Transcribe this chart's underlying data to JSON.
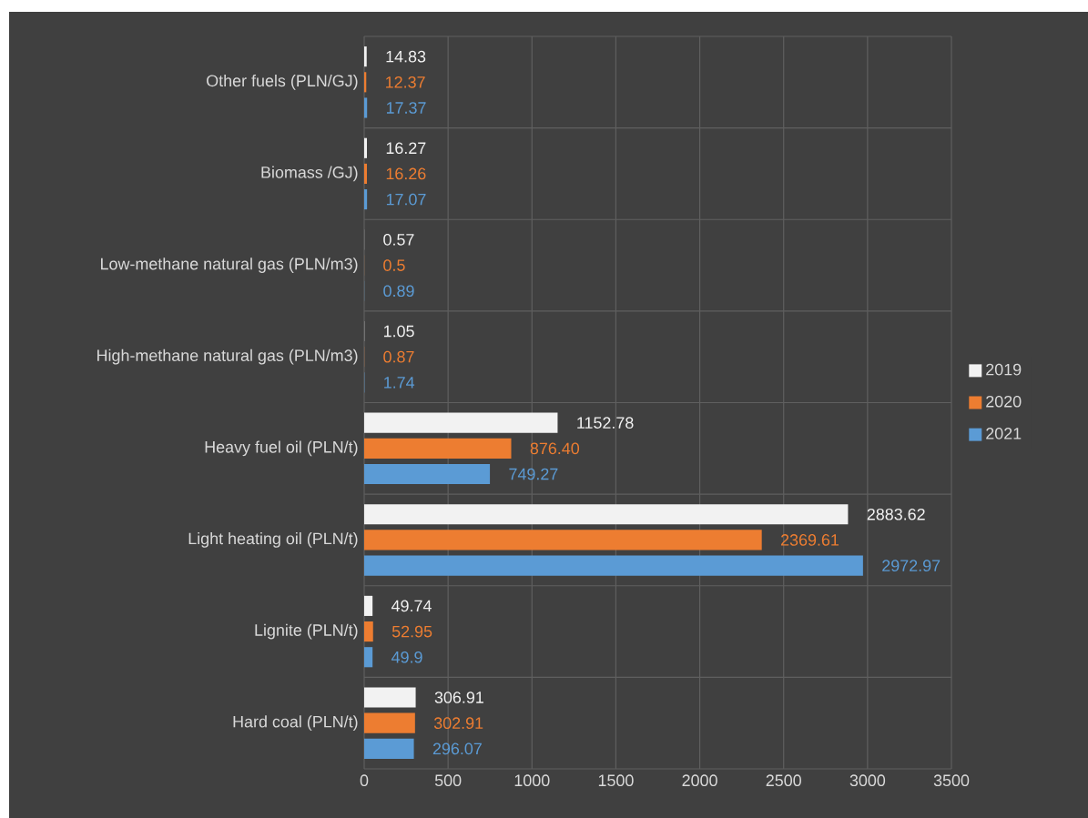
{
  "chart_data": {
    "type": "bar",
    "orientation": "horizontal",
    "categories": [
      "Other fuels (PLN/GJ)",
      "Biomass /GJ)",
      "Low-methane natural gas (PLN/m3)",
      "High-methane natural gas (PLN/m3)",
      "Heavy fuel oil (PLN/t)",
      "Light heating oil (PLN/t)",
      "Lignite (PLN/t)",
      "Hard coal (PLN/t)"
    ],
    "series": [
      {
        "name": "2019",
        "color": "#f2f2f2",
        "values": [
          14.83,
          16.27,
          0.57,
          1.05,
          1152.78,
          2883.62,
          49.74,
          306.91
        ],
        "value_labels": [
          "14.83",
          "16.27",
          "0.57",
          "1.05",
          "1152.78",
          "2883.62",
          "49.74",
          "306.91"
        ]
      },
      {
        "name": "2020",
        "color": "#ed7d31",
        "values": [
          12.37,
          16.26,
          0.5,
          0.87,
          876.4,
          2369.61,
          52.95,
          302.91
        ],
        "value_labels": [
          "12.37",
          "16.26",
          "0.5",
          "0.87",
          "876.40",
          "2369.61",
          "52.95",
          "302.91"
        ]
      },
      {
        "name": "2021",
        "color": "#5b9bd5",
        "values": [
          17.37,
          17.07,
          0.89,
          1.74,
          749.27,
          2972.97,
          49.9,
          296.07
        ],
        "value_labels": [
          "17.37",
          "17.07",
          "0.89",
          "1.74",
          "749.27",
          "2972.97",
          "49.9",
          "296.07"
        ]
      }
    ],
    "xlim": [
      0,
      3500
    ],
    "xticks": [
      0,
      500,
      1000,
      1500,
      2000,
      2500,
      3000,
      3500
    ],
    "grid": true,
    "legend": "right"
  }
}
